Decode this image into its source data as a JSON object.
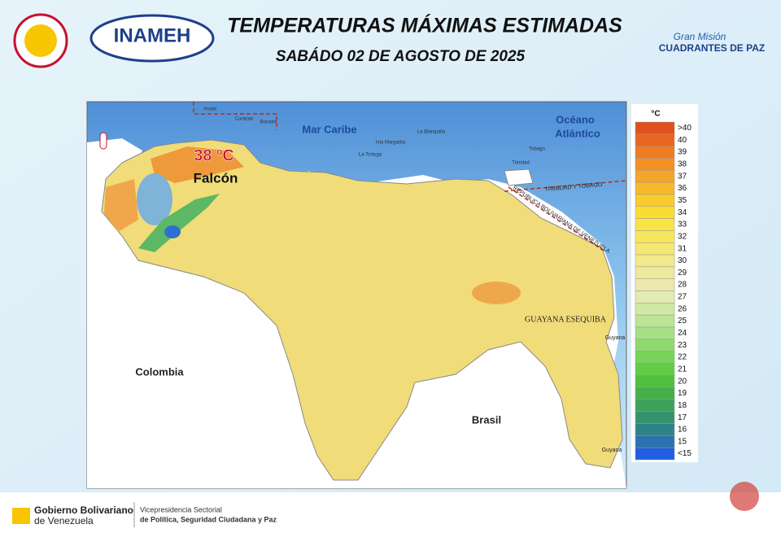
{
  "header": {
    "title": "TEMPERATURAS MÁXIMAS ESTIMADAS",
    "subtitle": "SABÁDO 02 DE AGOSTO DE 2025",
    "logo_left": "INAMEH",
    "logo_right_top": "Gran Misión",
    "logo_right_bottom": "CUADRANTES DE PAZ"
  },
  "map": {
    "highlight_value": "38 ºC",
    "highlight_place": "Falcón",
    "sea": "Mar Caribe",
    "ocean_line1": "Océano",
    "ocean_line2": "Atlántico",
    "country_west": "Colombia",
    "country_south": "Brasil",
    "region_east": "GUAYANA ESEQUIBA",
    "islands_label": "TRINIDAD Y TOBAGO",
    "border_label": "REPUBLICA BOLIVARIANA DE VENEZUELA",
    "guyana": "Guyana",
    "guyana_south": "Guyana",
    "islands": [
      "Aruba",
      "Curazao",
      "Bonaire",
      "La Tortuga",
      "La Blanquilla",
      "Isla Margarita",
      "Trinidad",
      "Tobago"
    ]
  },
  "legend": {
    "unit": "°C",
    "items": [
      {
        "label": ">40",
        "color": "#e0501e"
      },
      {
        "label": "40",
        "color": "#e8661f"
      },
      {
        "label": "39",
        "color": "#ee7c22"
      },
      {
        "label": "38",
        "color": "#f29126"
      },
      {
        "label": "37",
        "color": "#f5a52a"
      },
      {
        "label": "36",
        "color": "#f8b82d"
      },
      {
        "label": "35",
        "color": "#f9cb2f"
      },
      {
        "label": "34",
        "color": "#fadd33"
      },
      {
        "label": "33",
        "color": "#f8e448"
      },
      {
        "label": "32",
        "color": "#f6e65e"
      },
      {
        "label": "31",
        "color": "#f4e774"
      },
      {
        "label": "30",
        "color": "#f2e98a"
      },
      {
        "label": "29",
        "color": "#efe99d"
      },
      {
        "label": "28",
        "color": "#ece8ae"
      },
      {
        "label": "27",
        "color": "#e2ecb0"
      },
      {
        "label": "26",
        "color": "#cfe9a4"
      },
      {
        "label": "25",
        "color": "#bbe594"
      },
      {
        "label": "24",
        "color": "#a6e082"
      },
      {
        "label": "23",
        "color": "#8fda6e"
      },
      {
        "label": "22",
        "color": "#78d35a"
      },
      {
        "label": "21",
        "color": "#62cb48"
      },
      {
        "label": "20",
        "color": "#4ec13e"
      },
      {
        "label": "19",
        "color": "#43b04a"
      },
      {
        "label": "18",
        "color": "#3ca15b"
      },
      {
        "label": "17",
        "color": "#35926e"
      },
      {
        "label": "16",
        "color": "#2e8387"
      },
      {
        "label": "15",
        "color": "#2a72b0"
      },
      {
        "label": "<15",
        "color": "#1f5fe0"
      }
    ]
  },
  "footer": {
    "gov_line1": "Gobierno Bolivariano",
    "gov_line2": "de Venezuela",
    "vice_line1": "Vicepresidencia Sectorial",
    "vice_line2": "de Política, Seguridad Ciudadana y Paz"
  }
}
